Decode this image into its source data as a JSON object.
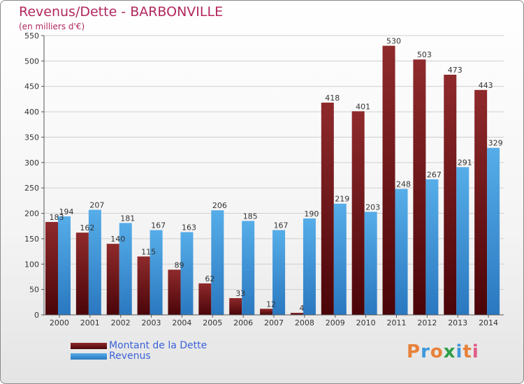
{
  "title": "Revenus/Dette - BARBONVILLE",
  "subtitle": "(en milliers d'€)",
  "logo": "Proxiti",
  "colors": {
    "dette": "#6b0f12",
    "revenus": "#3f97dc",
    "title": "#b2275e",
    "legend_text": "#3a62d8"
  },
  "chart_data": {
    "type": "bar",
    "title": "Revenus/Dette - BARBONVILLE",
    "ylabel": "(en milliers d'€)",
    "categories": [
      "2000",
      "2001",
      "2002",
      "2003",
      "2004",
      "2005",
      "2006",
      "2007",
      "2008",
      "2009",
      "2010",
      "2011",
      "2012",
      "2013",
      "2014"
    ],
    "series": [
      {
        "name": "Montant de la Dette",
        "color": "#6b0f12",
        "values": [
          183,
          162,
          140,
          115,
          89,
          62,
          33,
          12,
          4,
          418,
          401,
          530,
          503,
          473,
          443
        ]
      },
      {
        "name": "Revenus",
        "color": "#3f97dc",
        "values": [
          194,
          207,
          181,
          167,
          163,
          206,
          185,
          167,
          190,
          219,
          203,
          248,
          267,
          291,
          329
        ]
      }
    ],
    "ylim": [
      0,
      550
    ],
    "yticks": [
      0,
      50,
      100,
      150,
      200,
      250,
      300,
      350,
      400,
      450,
      500,
      550
    ],
    "grid": true,
    "legend_position": "bottom-left"
  }
}
